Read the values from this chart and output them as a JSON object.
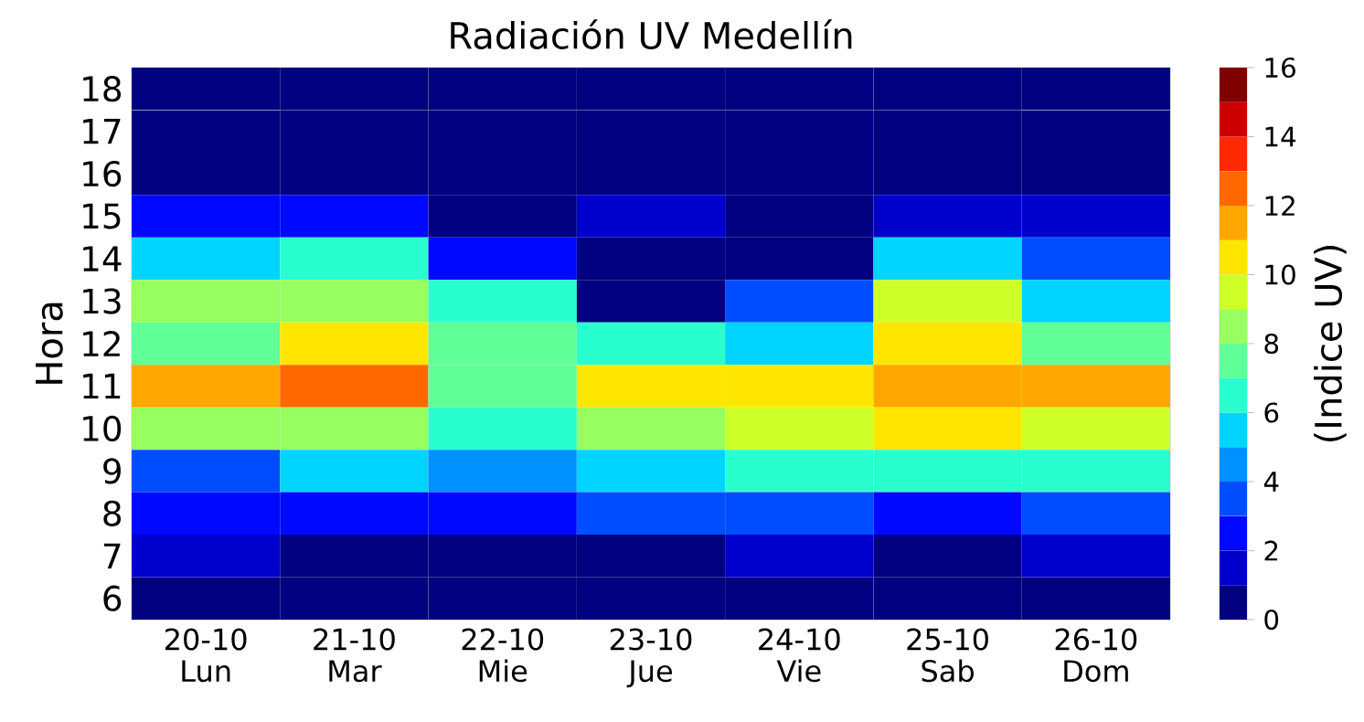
{
  "chart_data": {
    "type": "heatmap",
    "title": "Radiación UV Medellín",
    "ylabel": "Hora",
    "clabel": "(Indice UV)",
    "categories": [
      "20-10 Lun",
      "21-10 Mar",
      "22-10 Mie",
      "23-10 Jue",
      "24-10 Vie",
      "25-10 Sab",
      "26-10 Dom"
    ],
    "y_categories": [
      "18",
      "17",
      "16",
      "15",
      "14",
      "13",
      "12",
      "11",
      "10",
      "9",
      "8",
      "7",
      "6"
    ],
    "cells": [
      [
        0,
        0,
        0,
        0,
        0,
        0,
        0
      ],
      [
        0,
        0,
        0,
        0,
        0,
        0,
        0
      ],
      [
        0,
        0,
        0,
        0,
        0,
        0,
        0
      ],
      [
        2,
        2,
        0,
        1,
        0,
        1,
        1
      ],
      [
        5,
        6,
        2,
        0,
        0,
        5,
        3
      ],
      [
        8,
        8,
        6,
        0,
        3,
        9,
        5
      ],
      [
        7,
        10,
        7,
        6,
        5,
        10,
        7
      ],
      [
        11,
        12,
        7,
        10,
        10,
        11,
        11
      ],
      [
        8,
        8,
        6,
        8,
        9,
        10,
        9
      ],
      [
        3,
        5,
        4,
        5,
        6,
        6,
        6
      ],
      [
        2,
        2,
        2,
        3,
        3,
        2,
        3
      ],
      [
        1,
        0,
        0,
        0,
        1,
        0,
        1
      ],
      [
        0,
        0,
        0,
        0,
        0,
        0,
        0
      ]
    ],
    "clim": [
      0,
      16
    ],
    "cticks": [
      0,
      2,
      4,
      6,
      8,
      10,
      12,
      14,
      16
    ]
  }
}
